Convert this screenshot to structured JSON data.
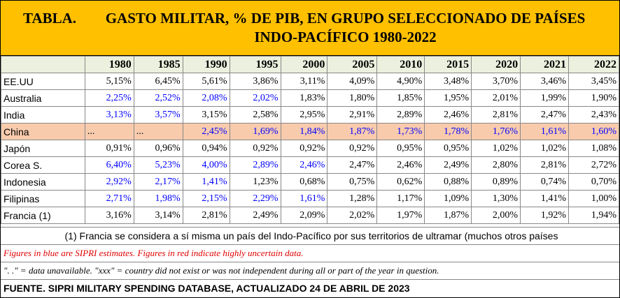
{
  "header": {
    "label": "TABLA.",
    "title": "GASTO MILITAR, % DE PIB, EN GRUPO SELECCIONADO DE PAÍSES INDO-PACÍFICO 1980-2022"
  },
  "table": {
    "columns": [
      "1980",
      "1985",
      "1990",
      "1995",
      "2000",
      "2005",
      "2010",
      "2015",
      "2020",
      "2021",
      "2022"
    ],
    "rows": [
      {
        "name": "EE.UU",
        "values": [
          "5,15%",
          "6,45%",
          "5,61%",
          "3,86%",
          "3,11%",
          "4,09%",
          "4,90%",
          "3,48%",
          "3,70%",
          "3,46%",
          "3,45%"
        ]
      },
      {
        "name": "Australia",
        "values": [
          "2,25%",
          "2,52%",
          "2,08%",
          "2,02%",
          "1,83%",
          "1,80%",
          "1,85%",
          "1,95%",
          "2,01%",
          "1,99%",
          "1,90%"
        ]
      },
      {
        "name": "India",
        "values": [
          "3,13%",
          "3,57%",
          "3,15%",
          "2,58%",
          "2,95%",
          "2,91%",
          "2,89%",
          "2,46%",
          "2,81%",
          "2,47%",
          "2,43%"
        ]
      },
      {
        "name": "China",
        "values": [
          "...",
          "...",
          "2,45%",
          "1,69%",
          "1,84%",
          "1,87%",
          "1,73%",
          "1,78%",
          "1,76%",
          "1,61%",
          "1,60%"
        ]
      },
      {
        "name": "Japón",
        "values": [
          "0,91%",
          "0,96%",
          "0,94%",
          "0,92%",
          "0,92%",
          "0,92%",
          "0,95%",
          "0,95%",
          "1,02%",
          "1,02%",
          "1,08%"
        ]
      },
      {
        "name": "Corea S.",
        "values": [
          "6,40%",
          "5,23%",
          "4,00%",
          "2,89%",
          "2,46%",
          "2,47%",
          "2,46%",
          "2,49%",
          "2,80%",
          "2,81%",
          "2,72%"
        ]
      },
      {
        "name": "Indonesia",
        "values": [
          "2,92%",
          "2,17%",
          "1,41%",
          "1,23%",
          "0,68%",
          "0,75%",
          "0,62%",
          "0,88%",
          "0,89%",
          "0,74%",
          "0,70%"
        ]
      },
      {
        "name": "Filipinas",
        "values": [
          "2,71%",
          "1,98%",
          "2,15%",
          "2,29%",
          "1,61%",
          "1,28%",
          "1,17%",
          "1,09%",
          "1,30%",
          "1,41%",
          "1,00%"
        ]
      },
      {
        "name": "Francia (1)",
        "values": [
          "3,16%",
          "3,14%",
          "2,81%",
          "2,49%",
          "2,09%",
          "2,02%",
          "1,97%",
          "1,87%",
          "2,00%",
          "1,92%",
          "1,94%"
        ]
      }
    ]
  },
  "notes": {
    "footnote": "(1) Francia se considera a sí misma un país del Indo-Pacífico por sus territorios de ultramar (muchos otros países",
    "estimates": "Figures in blue are SIPRI estimates. Figures in red indicate highly uncertain data.",
    "unavailable": "\". .\" = data unavailable. \"xxx\" = country did not exist or was not independent during all or part of the year in question.",
    "source": "FUENTE. SIPRI MILITARY SPENDING DATABASE, ACTUALIZADO 24 DE ABRIL DE 2023"
  }
}
